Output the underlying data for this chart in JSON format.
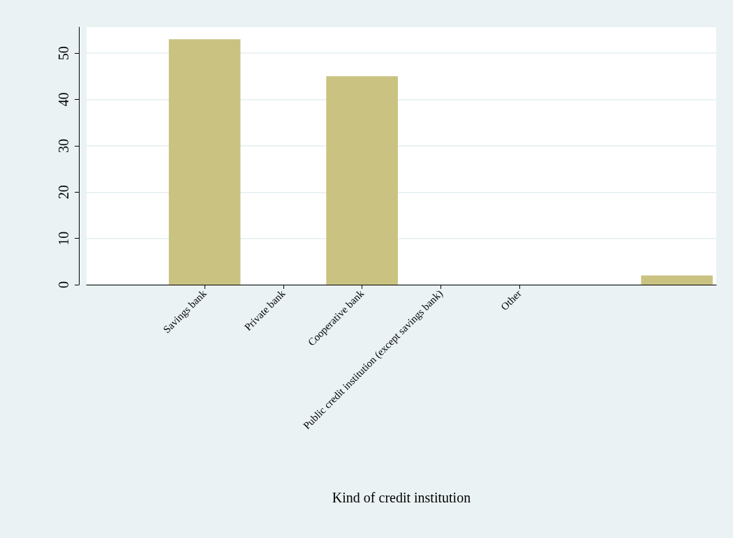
{
  "chart_data": {
    "type": "bar",
    "xlabel": "Kind of credit institution",
    "categories": [
      null,
      "Savings bank",
      "Private bank",
      "Cooperative bank",
      "Public credit institution (except savings bank)",
      "Other",
      null,
      null
    ],
    "values": [
      null,
      53,
      0,
      45,
      0,
      0,
      null,
      2
    ],
    "color": "#cac281",
    "ylim": [
      0,
      55.6
    ],
    "yticks": [
      0,
      10,
      20,
      30,
      40,
      50
    ],
    "grid": "y"
  }
}
